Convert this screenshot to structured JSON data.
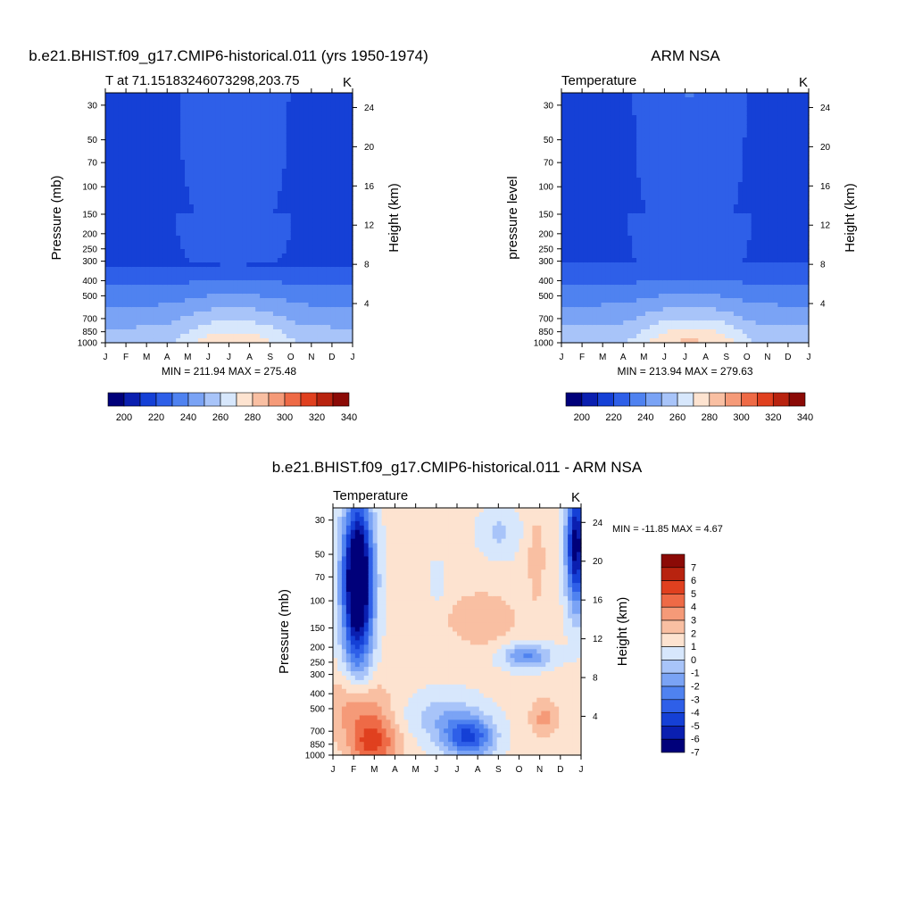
{
  "colors": {
    "abs_palette": [
      "#00007a",
      "#0a1fb0",
      "#1540d6",
      "#2e5fe8",
      "#4f82f0",
      "#7aa3f5",
      "#a8c4f9",
      "#d7e7fc",
      "#fde3d0",
      "#f9bfa2",
      "#f59a78",
      "#ee6a46",
      "#e0401f",
      "#b8230f",
      "#8b0a06"
    ],
    "diff_palette": [
      "#00007a",
      "#0a1fb0",
      "#1540d6",
      "#2e5fe8",
      "#4f82f0",
      "#7aa3f5",
      "#a8c4f9",
      "#d7e7fc",
      "#fde3d0",
      "#f9bfa2",
      "#f59a78",
      "#ee6a46",
      "#e0401f",
      "#b8230f",
      "#8b0a06"
    ]
  },
  "chart_data": [
    {
      "type": "heatmap",
      "title": "b.e21.BHIST.f09_g17.CMIP6-historical.011 (yrs 1950-1974)",
      "left_label": "T at 71.15183246073298,203.75",
      "right_label": "K",
      "ylabel": "Pressure (mb)",
      "y2label": "Height (km)",
      "x_ticks": [
        "J",
        "F",
        "M",
        "A",
        "M",
        "J",
        "J",
        "A",
        "S",
        "O",
        "N",
        "D",
        "J"
      ],
      "y_ticks": [
        30,
        50,
        70,
        100,
        150,
        200,
        250,
        300,
        400,
        500,
        700,
        850,
        1000
      ],
      "y2_ticks": [
        4,
        8,
        12,
        16,
        20,
        24
      ],
      "ylim": [
        1000,
        25
      ],
      "y2lim": [
        0,
        25
      ],
      "min_max_text": "MIN = 211.94 MAX = 275.48",
      "colorbar_labels": [
        "200",
        "220",
        "240",
        "260",
        "280",
        "300",
        "320",
        "340"
      ],
      "levels": [
        190,
        200,
        210,
        220,
        230,
        240,
        250,
        260,
        270,
        280,
        290,
        300,
        310,
        320,
        330,
        340,
        350
      ],
      "min": 211.94,
      "max": 275.48,
      "field": "model"
    },
    {
      "type": "heatmap",
      "title": "ARM NSA",
      "left_label": "Temperature",
      "right_label": "K",
      "ylabel": "pressure level",
      "y2label": "Height (km)",
      "x_ticks": [
        "J",
        "F",
        "M",
        "A",
        "M",
        "J",
        "J",
        "A",
        "S",
        "O",
        "N",
        "D",
        "J"
      ],
      "y_ticks": [
        30,
        50,
        70,
        100,
        150,
        200,
        250,
        300,
        400,
        500,
        700,
        850,
        1000
      ],
      "y2_ticks": [
        4,
        8,
        12,
        16,
        20,
        24
      ],
      "ylim": [
        1000,
        25
      ],
      "y2lim": [
        0,
        25
      ],
      "min_max_text": "MIN = 213.94 MAX = 279.63",
      "colorbar_labels": [
        "200",
        "220",
        "240",
        "260",
        "280",
        "300",
        "320",
        "340"
      ],
      "levels": [
        190,
        200,
        210,
        220,
        230,
        240,
        250,
        260,
        270,
        280,
        290,
        300,
        310,
        320,
        330,
        340,
        350
      ],
      "min": 213.94,
      "max": 279.63,
      "field": "obs"
    },
    {
      "type": "heatmap",
      "title": "b.e21.BHIST.f09_g17.CMIP6-historical.011 - ARM NSA",
      "left_label": "Temperature",
      "right_label": "K",
      "ylabel": "Pressure (mb)",
      "y2label": "Height (km)",
      "x_ticks": [
        "J",
        "F",
        "M",
        "A",
        "M",
        "J",
        "J",
        "A",
        "S",
        "O",
        "N",
        "D",
        "J"
      ],
      "y_ticks": [
        30,
        50,
        70,
        100,
        150,
        200,
        250,
        300,
        400,
        500,
        700,
        850,
        1000
      ],
      "y2_ticks": [
        4,
        8,
        12,
        16,
        20,
        24
      ],
      "ylim": [
        1000,
        25
      ],
      "y2lim": [
        0,
        25
      ],
      "min_max_text": "MIN = -11.85 MAX =   4.67",
      "colorbar_labels": [
        "7",
        "6",
        "5",
        "4",
        "3",
        "2",
        "1",
        "0",
        "-1",
        "-2",
        "-3",
        "-4",
        "-5",
        "-6",
        "-7"
      ],
      "levels": [
        -8,
        -7,
        -6,
        -5,
        -4,
        -3,
        -2,
        -1,
        0,
        1,
        2,
        3,
        4,
        5,
        6,
        7,
        8
      ],
      "min": -11.85,
      "max": 4.67,
      "field": "diff"
    }
  ]
}
